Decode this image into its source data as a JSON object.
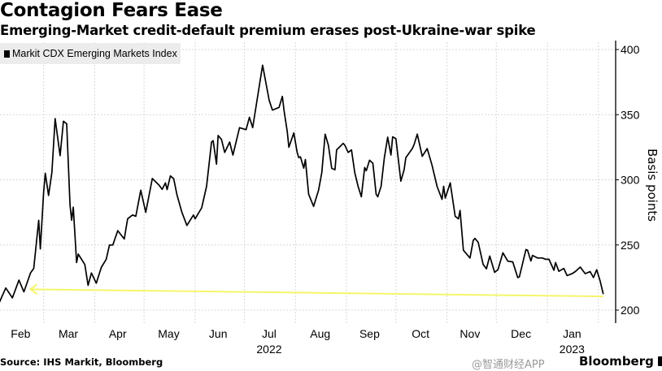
{
  "title": "Contagion Fears Ease",
  "subtitle": "Emerging-Market credit-default premium erases post-Ukraine-war spike",
  "source": "Source: IHS Markit, Bloomberg",
  "brand": "Bloomberg",
  "watermark": "@智通财经APP",
  "chart_data": {
    "type": "line",
    "title": "Contagion Fears Ease",
    "subtitle": "Emerging-Market credit-default premium erases post-Ukraine-war spike",
    "ylabel": "Basis points",
    "ylim": [
      200,
      400
    ],
    "yticks": [
      200,
      250,
      300,
      350,
      400
    ],
    "y_axis_side": "right",
    "x_tick_labels": [
      "Feb",
      "Mar",
      "Apr",
      "May",
      "Jun",
      "Jul",
      "Aug",
      "Sep",
      "Oct",
      "Nov",
      "Dec",
      "Jan"
    ],
    "x_year_labels": [
      "2022",
      "2023"
    ],
    "grid": true,
    "legend_position": "top-left",
    "colors": {
      "line": "#000000",
      "annotation": "#f5f56a",
      "grid": "#d8d8d8",
      "legend_bg": "#ececec"
    },
    "series": [
      {
        "name": "Markit CDX Emerging Markets Index",
        "points": [
          [
            "2022-02-02",
            205.6
          ],
          [
            "2022-02-06",
            217
          ],
          [
            "2022-02-10",
            209.4
          ],
          [
            "2022-02-14",
            223
          ],
          [
            "2022-02-17",
            214
          ],
          [
            "2022-02-21",
            228.5
          ],
          [
            "2022-02-23",
            232
          ],
          [
            "2022-02-26",
            269
          ],
          [
            "2022-02-27",
            247
          ],
          [
            "2022-03-01",
            291
          ],
          [
            "2022-03-02",
            305
          ],
          [
            "2022-03-04",
            288
          ],
          [
            "2022-03-06",
            305.6
          ],
          [
            "2022-03-08",
            347
          ],
          [
            "2022-03-11",
            318.5
          ],
          [
            "2022-03-13",
            345
          ],
          [
            "2022-03-15",
            343
          ],
          [
            "2022-03-17",
            280.6
          ],
          [
            "2022-03-18",
            269
          ],
          [
            "2022-03-19",
            279
          ],
          [
            "2022-03-21",
            236.5
          ],
          [
            "2022-03-22",
            243
          ],
          [
            "2022-03-26",
            235
          ],
          [
            "2022-03-28",
            219
          ],
          [
            "2022-03-30",
            228.5
          ],
          [
            "2022-04-02",
            220.6
          ],
          [
            "2022-04-05",
            232.7
          ],
          [
            "2022-04-08",
            239
          ],
          [
            "2022-04-10",
            250
          ],
          [
            "2022-04-12",
            250
          ],
          [
            "2022-04-15",
            261
          ],
          [
            "2022-04-19",
            254.6
          ],
          [
            "2022-04-21",
            270
          ],
          [
            "2022-04-24",
            273
          ],
          [
            "2022-04-26",
            272
          ],
          [
            "2022-04-29",
            292
          ],
          [
            "2022-05-02",
            275
          ],
          [
            "2022-05-06",
            301
          ],
          [
            "2022-05-10",
            296
          ],
          [
            "2022-05-12",
            292.7
          ],
          [
            "2022-05-14",
            297.7
          ],
          [
            "2022-05-15",
            292.5
          ],
          [
            "2022-05-17",
            303
          ],
          [
            "2022-05-19",
            300.8
          ],
          [
            "2022-05-21",
            288.5
          ],
          [
            "2022-05-24",
            275
          ],
          [
            "2022-05-27",
            265
          ],
          [
            "2022-05-31",
            273
          ],
          [
            "2022-06-01",
            270
          ],
          [
            "2022-06-05",
            278.5
          ],
          [
            "2022-06-08",
            295
          ],
          [
            "2022-06-11",
            329
          ],
          [
            "2022-06-12",
            330
          ],
          [
            "2022-06-14",
            312
          ],
          [
            "2022-06-15",
            334
          ],
          [
            "2022-06-17",
            331
          ],
          [
            "2022-06-19",
            321
          ],
          [
            "2022-06-22",
            329
          ],
          [
            "2022-06-24",
            319
          ],
          [
            "2022-06-28",
            340
          ],
          [
            "2022-07-02",
            338.5
          ],
          [
            "2022-07-04",
            348
          ],
          [
            "2022-07-06",
            340
          ],
          [
            "2022-07-09",
            364
          ],
          [
            "2022-07-12",
            388
          ],
          [
            "2022-07-16",
            361
          ],
          [
            "2022-07-18",
            353.5
          ],
          [
            "2022-07-22",
            355.6
          ],
          [
            "2022-07-24",
            364
          ],
          [
            "2022-07-25",
            353.5
          ],
          [
            "2022-07-27",
            337
          ],
          [
            "2022-07-28",
            325
          ],
          [
            "2022-07-31",
            336
          ],
          [
            "2022-08-02",
            321
          ],
          [
            "2022-08-03",
            317
          ],
          [
            "2022-08-04",
            317.7
          ],
          [
            "2022-08-06",
            309
          ],
          [
            "2022-08-07",
            315.6
          ],
          [
            "2022-08-09",
            289
          ],
          [
            "2022-08-12",
            279.6
          ],
          [
            "2022-08-15",
            292
          ],
          [
            "2022-08-17",
            305.6
          ],
          [
            "2022-08-19",
            335
          ],
          [
            "2022-08-21",
            326.5
          ],
          [
            "2022-08-23",
            308.8
          ],
          [
            "2022-08-25",
            307.7
          ],
          [
            "2022-08-26",
            323
          ],
          [
            "2022-08-30",
            328
          ],
          [
            "2022-08-31",
            326.5
          ],
          [
            "2022-09-02",
            321
          ],
          [
            "2022-09-04",
            323
          ],
          [
            "2022-09-06",
            305.6
          ],
          [
            "2022-09-08",
            295
          ],
          [
            "2022-09-10",
            287
          ],
          [
            "2022-09-12",
            309.4
          ],
          [
            "2022-09-13",
            307
          ],
          [
            "2022-09-15",
            315
          ],
          [
            "2022-09-17",
            312.7
          ],
          [
            "2022-09-19",
            289
          ],
          [
            "2022-09-20",
            287
          ],
          [
            "2022-09-22",
            295
          ],
          [
            "2022-09-24",
            317
          ],
          [
            "2022-09-26",
            332.7
          ],
          [
            "2022-09-28",
            319
          ],
          [
            "2022-09-29",
            333
          ],
          [
            "2022-10-01",
            331.5
          ],
          [
            "2022-10-04",
            299
          ],
          [
            "2022-10-06",
            307.7
          ],
          [
            "2022-10-07",
            317
          ],
          [
            "2022-10-11",
            324
          ],
          [
            "2022-10-12",
            327
          ],
          [
            "2022-10-14",
            335
          ],
          [
            "2022-10-17",
            318
          ],
          [
            "2022-10-20",
            324
          ],
          [
            "2022-10-23",
            311
          ],
          [
            "2022-10-26",
            295
          ],
          [
            "2022-10-29",
            285
          ],
          [
            "2022-10-30",
            295
          ],
          [
            "2022-10-31",
            286
          ],
          [
            "2022-11-03",
            297.7
          ],
          [
            "2022-11-06",
            272
          ],
          [
            "2022-11-08",
            270
          ],
          [
            "2022-11-09",
            276.5
          ],
          [
            "2022-11-11",
            246
          ],
          [
            "2022-11-13",
            243
          ],
          [
            "2022-11-15",
            240
          ],
          [
            "2022-11-17",
            253.5
          ],
          [
            "2022-11-18",
            255
          ],
          [
            "2022-11-20",
            252
          ],
          [
            "2022-11-23",
            235
          ],
          [
            "2022-11-25",
            231.7
          ],
          [
            "2022-11-27",
            241.5
          ],
          [
            "2022-11-30",
            229
          ],
          [
            "2022-12-02",
            231
          ],
          [
            "2022-12-05",
            244
          ],
          [
            "2022-12-08",
            237.6
          ],
          [
            "2022-12-11",
            237
          ],
          [
            "2022-12-14",
            225
          ],
          [
            "2022-12-15",
            225.5
          ],
          [
            "2022-12-19",
            246.5
          ],
          [
            "2022-12-20",
            246
          ],
          [
            "2022-12-22",
            237.7
          ],
          [
            "2022-12-23",
            242
          ],
          [
            "2022-12-26",
            240
          ],
          [
            "2022-12-29",
            240
          ],
          [
            "2022-12-31",
            239
          ],
          [
            "2023-01-02",
            239
          ],
          [
            "2023-01-05",
            230.6
          ],
          [
            "2023-01-06",
            236.5
          ],
          [
            "2023-01-08",
            229.8
          ],
          [
            "2023-01-11",
            232
          ],
          [
            "2023-01-13",
            226.5
          ],
          [
            "2023-01-16",
            228
          ],
          [
            "2023-01-18",
            229.6
          ],
          [
            "2023-01-21",
            233
          ],
          [
            "2023-01-24",
            228
          ],
          [
            "2023-01-27",
            229.6
          ],
          [
            "2023-01-29",
            225
          ],
          [
            "2023-01-31",
            231
          ],
          [
            "2023-02-02",
            222.7
          ],
          [
            "2023-02-04",
            212.3
          ]
        ]
      }
    ],
    "annotations": [
      {
        "type": "arrow",
        "from": [
          "2023-02-04",
          210.5
        ],
        "to": [
          "2022-02-21",
          216
        ]
      }
    ]
  }
}
